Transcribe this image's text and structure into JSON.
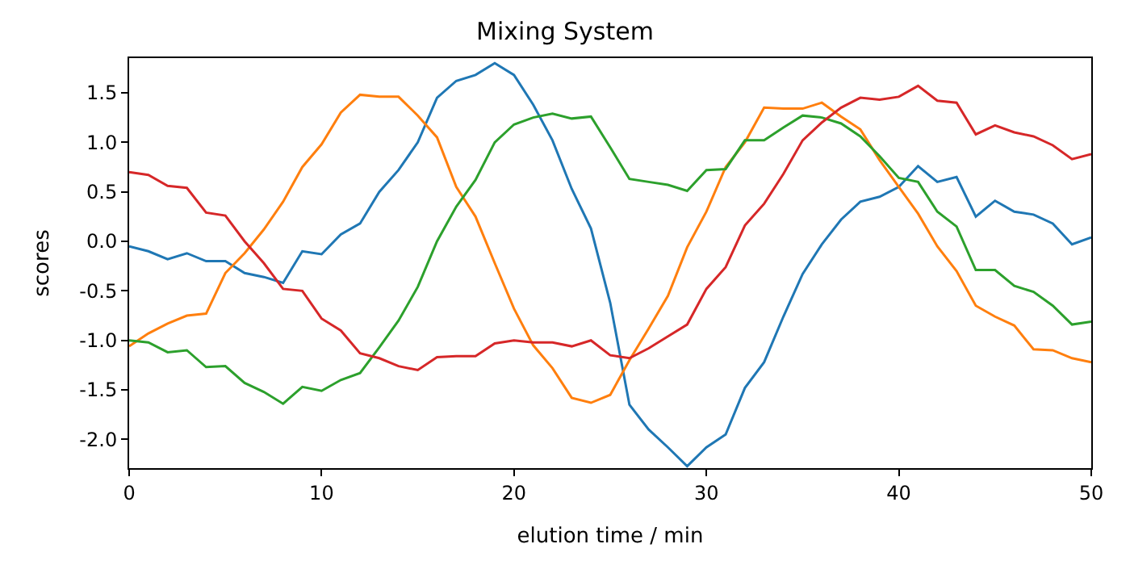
{
  "chart_data": {
    "type": "line",
    "title": "Mixing System",
    "xlabel": "elution time / min",
    "ylabel": "scores",
    "x": [
      0,
      1,
      2,
      3,
      4,
      5,
      6,
      7,
      8,
      9,
      10,
      11,
      12,
      13,
      14,
      15,
      16,
      17,
      18,
      19,
      20,
      21,
      22,
      23,
      24,
      25,
      26,
      27,
      28,
      29,
      30,
      31,
      32,
      33,
      34,
      35,
      36,
      37,
      38,
      39,
      40,
      41,
      42,
      43,
      44,
      45,
      46,
      47,
      48,
      49,
      50
    ],
    "series": [
      {
        "color": "#1f77b4",
        "values": [
          -0.05,
          -0.1,
          -0.18,
          -0.12,
          -0.2,
          -0.2,
          -0.32,
          -0.36,
          -0.42,
          -0.1,
          -0.13,
          0.07,
          0.18,
          0.5,
          0.72,
          1.0,
          1.45,
          1.62,
          1.68,
          1.8,
          1.68,
          1.38,
          1.02,
          0.53,
          0.13,
          -0.62,
          -1.65,
          -1.9,
          -2.08,
          -2.27,
          -2.08,
          -1.95,
          -1.48,
          -1.22,
          -0.76,
          -0.33,
          -0.03,
          0.22,
          0.4,
          0.45,
          0.55,
          0.76,
          0.6,
          0.65,
          0.25,
          0.41,
          0.3,
          0.27,
          0.18,
          -0.03,
          0.04
        ]
      },
      {
        "color": "#ff7f0e",
        "values": [
          -1.06,
          -0.93,
          -0.83,
          -0.75,
          -0.73,
          -0.32,
          -0.12,
          0.12,
          0.4,
          0.75,
          0.98,
          1.3,
          1.48,
          1.46,
          1.46,
          1.27,
          1.05,
          0.55,
          0.25,
          -0.22,
          -0.68,
          -1.05,
          -1.28,
          -1.58,
          -1.63,
          -1.55,
          -1.2,
          -0.88,
          -0.55,
          -0.06,
          0.3,
          0.75,
          1.0,
          1.35,
          1.34,
          1.34,
          1.4,
          1.26,
          1.13,
          0.82,
          0.55,
          0.28,
          -0.05,
          -0.3,
          -0.65,
          -0.76,
          -0.85,
          -1.09,
          -1.1,
          -1.18,
          -1.22
        ]
      },
      {
        "color": "#2ca02c",
        "values": [
          -1.0,
          -1.02,
          -1.12,
          -1.1,
          -1.27,
          -1.26,
          -1.43,
          -1.52,
          -1.64,
          -1.47,
          -1.51,
          -1.4,
          -1.33,
          -1.07,
          -0.8,
          -0.46,
          0.0,
          0.35,
          0.62,
          1.0,
          1.18,
          1.25,
          1.29,
          1.24,
          1.26,
          0.95,
          0.63,
          0.6,
          0.57,
          0.51,
          0.72,
          0.73,
          1.02,
          1.02,
          1.15,
          1.27,
          1.25,
          1.19,
          1.06,
          0.86,
          0.64,
          0.6,
          0.3,
          0.15,
          -0.29,
          -0.29,
          -0.45,
          -0.51,
          -0.65,
          -0.84,
          -0.81
        ]
      },
      {
        "color": "#d62728",
        "values": [
          0.7,
          0.67,
          0.56,
          0.54,
          0.29,
          0.26,
          0.0,
          -0.22,
          -0.48,
          -0.5,
          -0.78,
          -0.9,
          -1.13,
          -1.18,
          -1.26,
          -1.3,
          -1.17,
          -1.16,
          -1.16,
          -1.03,
          -1.0,
          -1.02,
          -1.02,
          -1.06,
          -1.0,
          -1.15,
          -1.18,
          -1.08,
          -0.96,
          -0.84,
          -0.48,
          -0.26,
          0.16,
          0.38,
          0.68,
          1.02,
          1.2,
          1.35,
          1.45,
          1.43,
          1.46,
          1.57,
          1.42,
          1.4,
          1.08,
          1.17,
          1.1,
          1.06,
          0.97,
          0.83,
          0.88
        ]
      }
    ],
    "xlim": [
      0,
      50
    ],
    "xticks": [
      0,
      10,
      20,
      30,
      40,
      50
    ],
    "ylim": [
      -2.29,
      1.85
    ],
    "yticks": [
      {
        "value": -2,
        "label": "-2.0"
      },
      {
        "value": -1.5,
        "label": "-1.5"
      },
      {
        "value": -1,
        "label": "-1.0"
      },
      {
        "value": -0.5,
        "label": "-0.5"
      },
      {
        "value": 0,
        "label": "0.0"
      },
      {
        "value": 0.5,
        "label": "0.5"
      },
      {
        "value": 1,
        "label": "1.0"
      },
      {
        "value": 1.5,
        "label": "1.5"
      }
    ],
    "marker": "none",
    "line_style": "solid"
  }
}
